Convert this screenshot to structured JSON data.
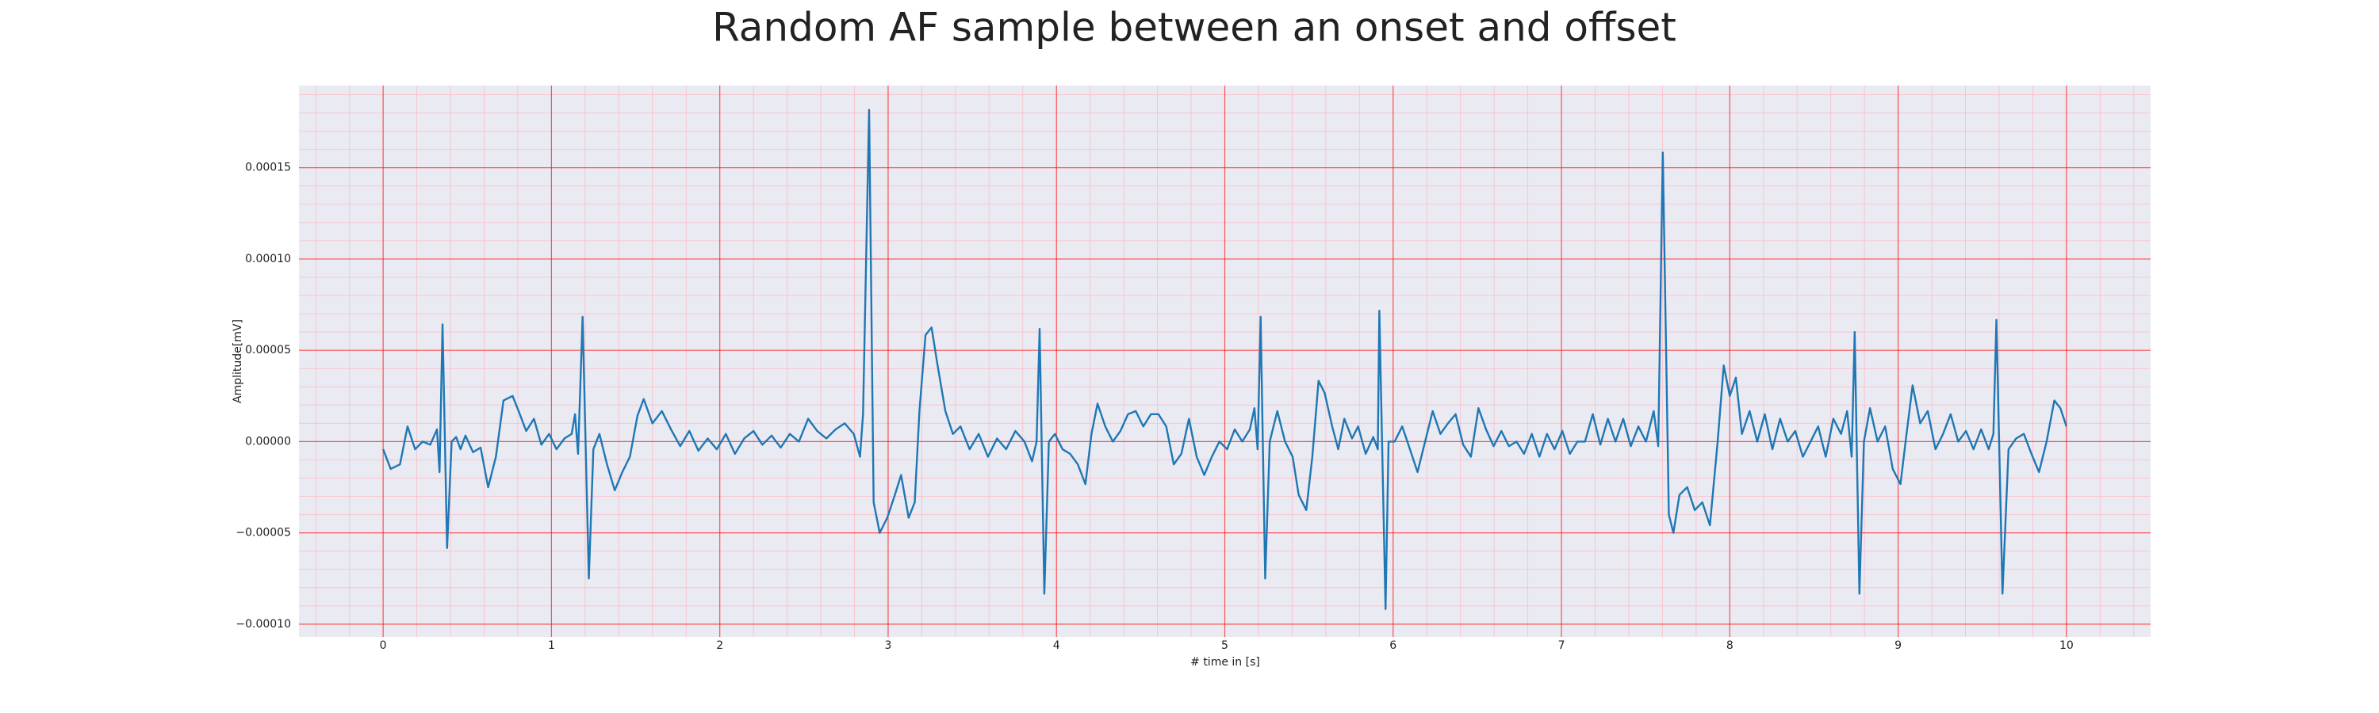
{
  "chart_data": {
    "type": "line",
    "title": "Random AF sample between an onset and offset",
    "xlabel": "# time in [s]",
    "ylabel": "Amplitude[mV]",
    "color": "#1f77b4",
    "grid": true,
    "minor_grid": true,
    "xlim": [
      -0.5,
      10.5
    ],
    "xticks": [
      0,
      1,
      2,
      3,
      4,
      5,
      6,
      7,
      8,
      9,
      10
    ],
    "ylim": [
      -0.000107,
      0.000195
    ],
    "yticks": [
      {
        "value": -0.0001,
        "label": "−0.00010"
      },
      {
        "value": -5e-05,
        "label": "−0.00005"
      },
      {
        "value": 0,
        "label": "0.00000"
      },
      {
        "value": 5e-05,
        "label": "0.00005"
      },
      {
        "value": 0.0001,
        "label": "0.00010"
      },
      {
        "value": 0.00015,
        "label": "0.00015"
      }
    ],
    "x": [
      0,
      0.045,
      0.1,
      0.145,
      0.19,
      0.235,
      0.28,
      0.32,
      0.335,
      0.353,
      0.38,
      0.407,
      0.434,
      0.46,
      0.489,
      0.534,
      0.579,
      0.624,
      0.67,
      0.715,
      0.769,
      0.805,
      0.85,
      0.896,
      0.94,
      0.986,
      1.03,
      1.077,
      1.12,
      1.14,
      1.158,
      1.185,
      1.222,
      1.249,
      1.285,
      1.33,
      1.376,
      1.421,
      1.466,
      1.511,
      1.548,
      1.6,
      1.656,
      1.71,
      1.765,
      1.819,
      1.873,
      1.928,
      1.982,
      2.036,
      2.09,
      2.145,
      2.2,
      2.253,
      2.308,
      2.362,
      2.416,
      2.47,
      2.525,
      2.579,
      2.633,
      2.688,
      2.742,
      2.796,
      2.833,
      2.851,
      2.887,
      2.914,
      2.95,
      2.995,
      3.04,
      3.077,
      3.122,
      3.158,
      3.186,
      3.222,
      3.258,
      3.294,
      3.34,
      3.385,
      3.43,
      3.484,
      3.538,
      3.593,
      3.647,
      3.701,
      3.756,
      3.81,
      3.855,
      3.882,
      3.9,
      3.928,
      3.955,
      3.991,
      4.036,
      4.081,
      4.127,
      4.172,
      4.208,
      4.244,
      4.29,
      4.335,
      4.38,
      4.425,
      4.471,
      4.516,
      4.561,
      4.606,
      4.652,
      4.697,
      4.742,
      4.787,
      4.833,
      4.878,
      4.923,
      4.968,
      5.014,
      5.059,
      5.104,
      5.149,
      5.176,
      5.195,
      5.213,
      5.24,
      5.267,
      5.312,
      5.358,
      5.403,
      5.439,
      5.484,
      5.52,
      5.557,
      5.593,
      5.638,
      5.674,
      5.71,
      5.756,
      5.792,
      5.837,
      5.882,
      5.909,
      5.918,
      5.955,
      5.973,
      6.009,
      6.054,
      6.1,
      6.145,
      6.19,
      6.235,
      6.281,
      6.326,
      6.371,
      6.416,
      6.462,
      6.507,
      6.552,
      6.597,
      6.643,
      6.688,
      6.733,
      6.778,
      6.824,
      6.869,
      6.914,
      6.959,
      7.005,
      7.05,
      7.095,
      7.14,
      7.186,
      7.231,
      7.276,
      7.321,
      7.367,
      7.412,
      7.457,
      7.502,
      7.548,
      7.575,
      7.602,
      7.638,
      7.665,
      7.701,
      7.747,
      7.792,
      7.837,
      7.882,
      7.928,
      7.964,
      8,
      8.036,
      8.072,
      8.118,
      8.163,
      8.208,
      8.253,
      8.299,
      8.344,
      8.389,
      8.434,
      8.48,
      8.525,
      8.57,
      8.615,
      8.661,
      8.697,
      8.724,
      8.742,
      8.77,
      8.797,
      8.833,
      8.878,
      8.923,
      8.968,
      9.014,
      9.05,
      9.086,
      9.131,
      9.176,
      9.222,
      9.267,
      9.312,
      9.357,
      9.403,
      9.448,
      9.493,
      9.538,
      9.566,
      9.584,
      9.62,
      9.656,
      9.701,
      9.747,
      9.792,
      9.837,
      9.882,
      9.928,
      9.964,
      10
    ],
    "values": [
      -4.2e-06,
      -1.5e-05,
      -1.25e-05,
      8.3e-06,
      -4.2e-06,
      0,
      -1.7e-06,
      6.7e-06,
      -1.67e-05,
      6.42e-05,
      -5.83e-05,
      0,
      2.5e-06,
      -4.2e-06,
      3.3e-06,
      -5.8e-06,
      -3.3e-06,
      -2.5e-05,
      -8.3e-06,
      2.25e-05,
      2.5e-05,
      1.67e-05,
      5.8e-06,
      1.25e-05,
      -1.7e-06,
      4.2e-06,
      -4.2e-06,
      1.7e-06,
      4.2e-06,
      1.5e-05,
      -6.7e-06,
      6.83e-05,
      -7.5e-05,
      -4.2e-06,
      4.2e-06,
      -1.25e-05,
      -2.67e-05,
      -1.67e-05,
      -8.3e-06,
      1.42e-05,
      2.33e-05,
      1e-05,
      1.67e-05,
      6.7e-06,
      -2.5e-06,
      5.8e-06,
      -5e-06,
      1.7e-06,
      -4.2e-06,
      4.2e-06,
      -6.7e-06,
      1.7e-06,
      5.8e-06,
      -1.7e-06,
      3.3e-06,
      -3.3e-06,
      4.2e-06,
      0,
      1.25e-05,
      5.8e-06,
      1.7e-06,
      6.7e-06,
      1e-05,
      4.2e-06,
      -8.3e-06,
      1.5e-05,
      0.0001817,
      -3.33e-05,
      -5e-05,
      -4.17e-05,
      -2.92e-05,
      -1.83e-05,
      -4.17e-05,
      -3.33e-05,
      1.67e-05,
      5.83e-05,
      6.25e-05,
      4.17e-05,
      1.67e-05,
      4.2e-06,
      8.3e-06,
      -4.2e-06,
      4.2e-06,
      -8.3e-06,
      1.7e-06,
      -4.2e-06,
      5.8e-06,
      0,
      -1.08e-05,
      0,
      6.17e-05,
      -8.33e-05,
      0,
      4.2e-06,
      -4.2e-06,
      -6.7e-06,
      -1.25e-05,
      -2.33e-05,
      4.2e-06,
      2.08e-05,
      8.3e-06,
      0,
      5.8e-06,
      1.5e-05,
      1.67e-05,
      8.3e-06,
      1.5e-05,
      1.5e-05,
      8.3e-06,
      -1.25e-05,
      -6.7e-06,
      1.25e-05,
      -8.3e-06,
      -1.83e-05,
      -8.3e-06,
      0,
      -4.2e-06,
      6.7e-06,
      0,
      6.7e-06,
      1.83e-05,
      -4.2e-06,
      6.83e-05,
      -7.5e-05,
      0,
      1.67e-05,
      0,
      -8.3e-06,
      -2.92e-05,
      -3.75e-05,
      -8.3e-06,
      3.33e-05,
      2.67e-05,
      8.3e-06,
      -4.2e-06,
      1.25e-05,
      1.7e-06,
      8.3e-06,
      -6.7e-06,
      2.5e-06,
      -4.2e-06,
      7.17e-05,
      -9.17e-05,
      0,
      0,
      8.3e-06,
      -4.2e-06,
      -1.67e-05,
      0,
      1.67e-05,
      4.2e-06,
      1e-05,
      1.5e-05,
      -1.7e-06,
      -8.3e-06,
      1.83e-05,
      6.7e-06,
      -2.5e-06,
      5.8e-06,
      -2.5e-06,
      0,
      -6.7e-06,
      4.2e-06,
      -8.3e-06,
      4.2e-06,
      -4.2e-06,
      5.8e-06,
      -6.7e-06,
      0,
      0,
      1.5e-05,
      -1.7e-06,
      1.25e-05,
      0,
      1.25e-05,
      -2.5e-06,
      8.3e-06,
      0,
      1.67e-05,
      -2.5e-06,
      0.0001583,
      -4e-05,
      -5e-05,
      -2.92e-05,
      -2.5e-05,
      -3.75e-05,
      -3.33e-05,
      -4.58e-05,
      0,
      4.17e-05,
      2.5e-05,
      3.5e-05,
      4.2e-06,
      1.67e-05,
      0,
      1.5e-05,
      -4.2e-06,
      1.25e-05,
      0,
      5.8e-06,
      -8.3e-06,
      0,
      8.3e-06,
      -8.3e-06,
      1.25e-05,
      4.2e-06,
      1.67e-05,
      -8.3e-06,
      6e-05,
      -8.33e-05,
      0,
      1.83e-05,
      0,
      8.3e-06,
      -1.5e-05,
      -2.33e-05,
      4.2e-06,
      3.08e-05,
      1e-05,
      1.67e-05,
      -4.2e-06,
      4.2e-06,
      1.5e-05,
      0,
      5.8e-06,
      -4.2e-06,
      6.7e-06,
      -4.2e-06,
      4.2e-06,
      6.67e-05,
      -8.33e-05,
      -4.2e-06,
      1.7e-06,
      4.2e-06,
      -6.7e-06,
      -1.67e-05,
      0,
      2.25e-05,
      1.83e-05,
      8.3e-06
    ]
  }
}
